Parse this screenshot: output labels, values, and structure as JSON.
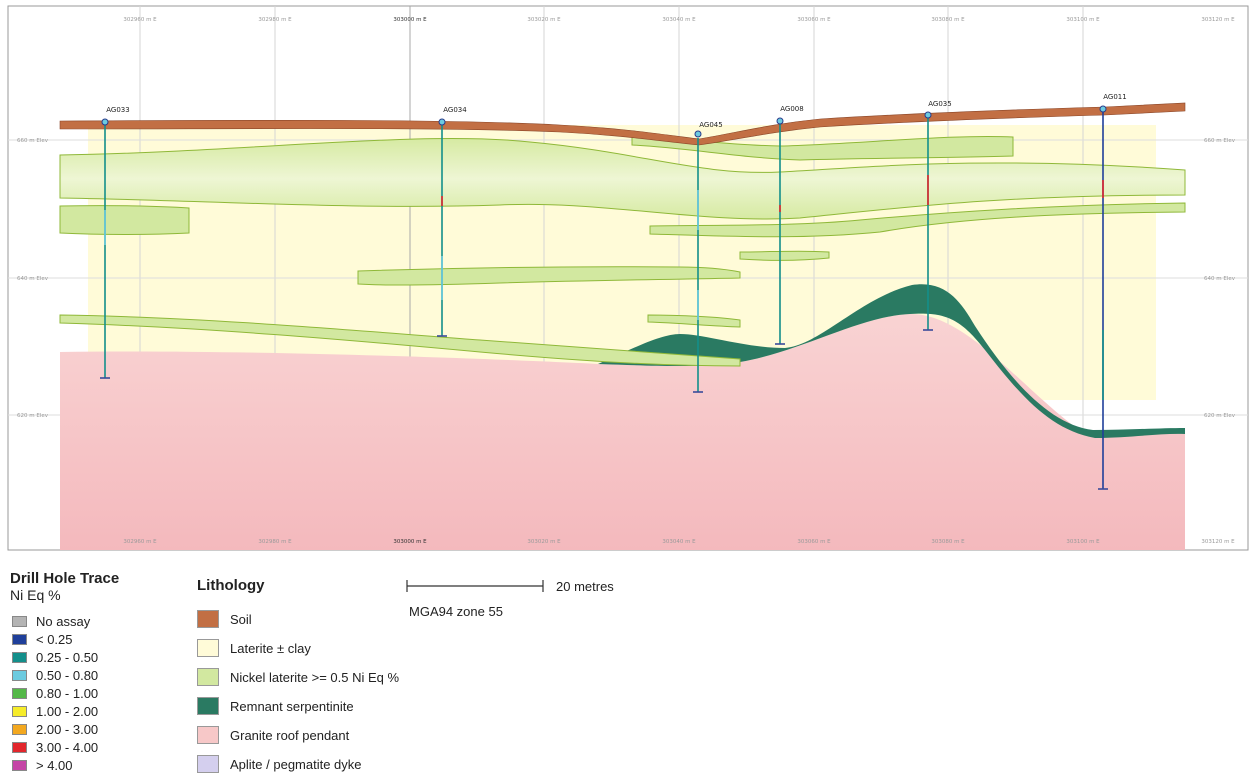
{
  "easting_labels": [
    "302960 m E",
    "302980 m E",
    "303000 m E",
    "303020 m E",
    "303040 m E",
    "303060 m E",
    "303080 m E",
    "303100 m E",
    "303120 m E"
  ],
  "elevation_labels": [
    "660 m Elev",
    "640 m Elev",
    "620 m Elev"
  ],
  "drill_holes": [
    "AG033",
    "AG034",
    "AG045",
    "AG008",
    "AG035",
    "AG011"
  ],
  "drill_legend": {
    "title": "Drill Hole Trace",
    "subtitle": "Ni Eq %",
    "items": [
      {
        "label": "No assay",
        "color": "#b4b4b4"
      },
      {
        "label": "< 0.25",
        "color": "#1f3f9a"
      },
      {
        "label": "0.25 - 0.50",
        "color": "#138f8b"
      },
      {
        "label": "0.50 - 0.80",
        "color": "#6ccbe0"
      },
      {
        "label": "0.80 - 1.00",
        "color": "#54b848"
      },
      {
        "label": "1.00 - 2.00",
        "color": "#f6ec2a"
      },
      {
        "label": "2.00 - 3.00",
        "color": "#f3a81f"
      },
      {
        "label": "3.00 - 4.00",
        "color": "#e2262c"
      },
      {
        "label": "> 4.00",
        "color": "#c545a6"
      }
    ]
  },
  "lithology_legend": {
    "title": "Lithology",
    "items": [
      {
        "label": "Soil",
        "color": "#c26f44"
      },
      {
        "label": "Laterite ± clay",
        "color": "#fffbd8"
      },
      {
        "label": "Nickel laterite >= 0.5 Ni Eq %",
        "color": "#d2e8a0"
      },
      {
        "label": "Remnant serpentinite",
        "color": "#2a7a62"
      },
      {
        "label": "Granite roof pendant",
        "color": "#f7c8c8"
      },
      {
        "label": "Aplite / pegmatite dyke",
        "color": "#d4cfee"
      }
    ]
  },
  "scale_bar": {
    "label": "20 metres",
    "projection": "MGA94 zone 55"
  }
}
